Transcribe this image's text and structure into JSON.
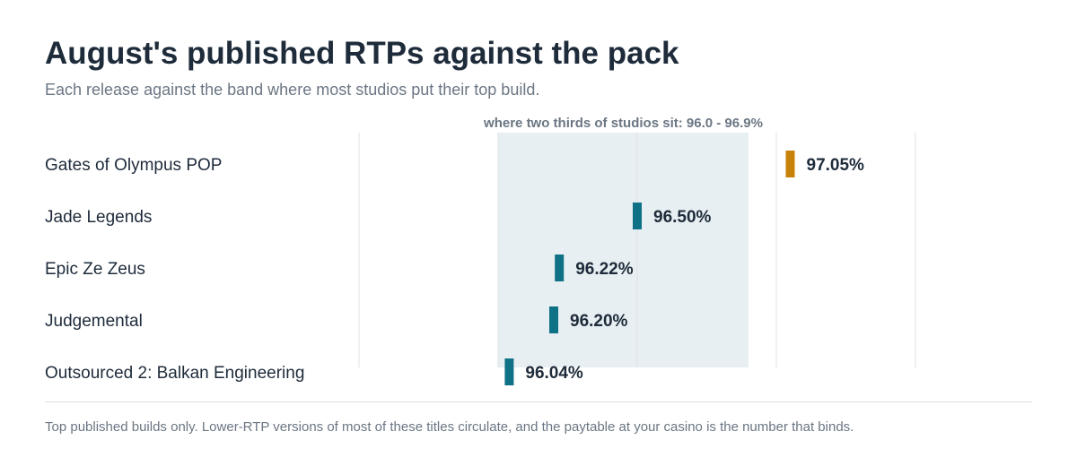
{
  "header": {
    "title": "August's published RTPs against the pack",
    "subtitle": "Each release against the band where most studios put their top build."
  },
  "footnote": "Top published builds only. Lower-RTP versions of most of these titles circulate, and the paytable at your casino is the number that binds.",
  "colors": {
    "highlight": "#c8820a",
    "default": "#0e7185",
    "band": "#e8eff2",
    "grid": "#dde2e6"
  },
  "chart_data": {
    "type": "dot",
    "title": "August's published RTPs against the pack",
    "subtitle": "Each release against the band where most studios put their top build.",
    "xlim": [
      95.5,
      97.5
    ],
    "gridlines": [
      95.5,
      96.0,
      96.5,
      97.0,
      97.5
    ],
    "band": {
      "from": 96.0,
      "to": 96.9,
      "label": "where two thirds of studios sit: 96.0 - 96.9%"
    },
    "rows": [
      {
        "name": "Gates of Olympus POP",
        "value": 97.05,
        "label": "97.05%",
        "highlight": true
      },
      {
        "name": "Jade Legends",
        "value": 96.5,
        "label": "96.50%",
        "highlight": false
      },
      {
        "name": "Epic Ze Zeus",
        "value": 96.22,
        "label": "96.22%",
        "highlight": false
      },
      {
        "name": "Judgemental",
        "value": 96.2,
        "label": "96.20%",
        "highlight": false
      },
      {
        "name": "Outsourced 2: Balkan Engineering",
        "value": 96.04,
        "label": "96.04%",
        "highlight": false
      }
    ]
  }
}
